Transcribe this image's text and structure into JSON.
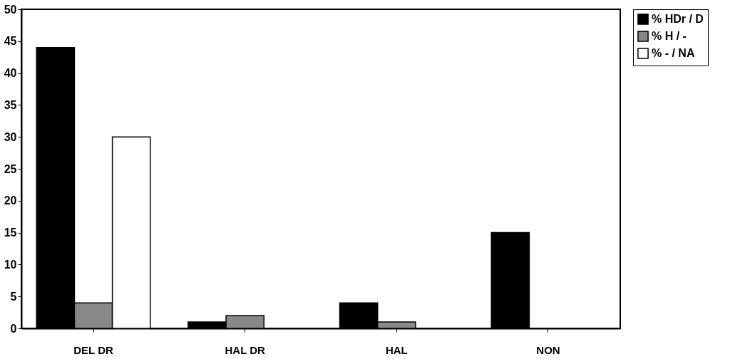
{
  "chart_data": {
    "type": "bar",
    "categories": [
      "DEL DR",
      "HAL DR",
      "HAL",
      "NON"
    ],
    "series": [
      {
        "name": "% HDr / D",
        "color": "#000000",
        "values": [
          44,
          1,
          4,
          15
        ]
      },
      {
        "name": "% H / -",
        "color": "#888888",
        "values": [
          4,
          2,
          1,
          null
        ]
      },
      {
        "name": "% - / NA",
        "color": "#ffffff",
        "values": [
          30,
          null,
          null,
          null
        ]
      }
    ],
    "ylim": [
      0,
      50
    ],
    "yticks": [
      0,
      5,
      10,
      15,
      20,
      25,
      30,
      35,
      40,
      45,
      50
    ],
    "grid": false,
    "legend": "right"
  }
}
